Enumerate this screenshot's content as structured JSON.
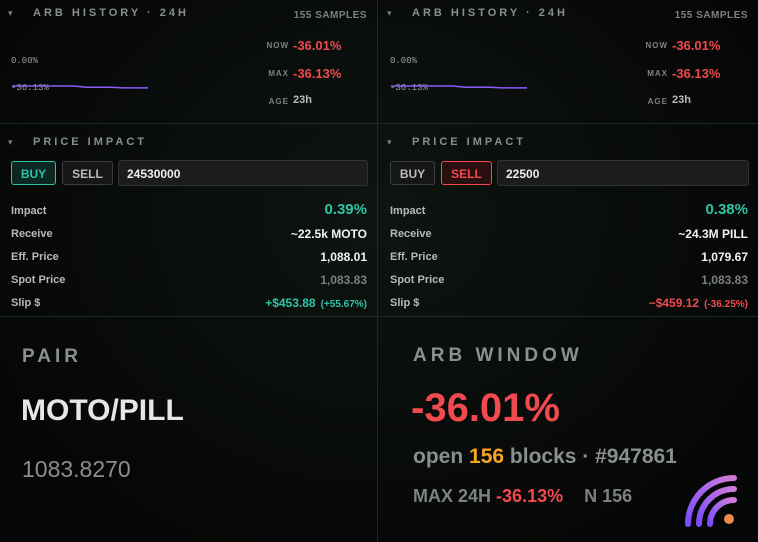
{
  "panels": [
    {
      "history": {
        "title": "ARB HISTORY · 24H",
        "samples": "155 SAMPLES",
        "sparkline": {
          "ticks": [
            {
              "value": 0,
              "label": "0.00%"
            },
            {
              "value": -36.13,
              "label": "-36.13%"
            }
          ],
          "values": [
            -33.6,
            -33.6,
            -33.6,
            -33.6,
            -33.6,
            -33.6,
            -35.2,
            -35.2,
            -35.2,
            -36.01,
            -36.01,
            -36.01
          ]
        },
        "now_label": "NOW",
        "now": "-36.01%",
        "max_label": "MAX",
        "max": "-36.13%",
        "age_label": "AGE",
        "age": "23h"
      },
      "impact": {
        "title": "PRICE IMPACT",
        "buy": "BUY",
        "sell": "SELL",
        "side": "buy",
        "amount": "24530000",
        "rows": [
          {
            "label": "Impact",
            "value": "0.39%"
          },
          {
            "label": "Receive",
            "value": "~22.5k MOTO"
          },
          {
            "label": "Eff. Price",
            "value": "1,088.01"
          },
          {
            "label": "Spot Price",
            "value": "1,083.83"
          },
          {
            "label": "Slip $",
            "value": "+$453.88",
            "note": "(+55.67%)",
            "tone": "up"
          }
        ]
      }
    },
    {
      "history": {
        "title": "ARB HISTORY · 24H",
        "samples": "155 SAMPLES",
        "sparkline": {
          "ticks": [
            {
              "value": 0,
              "label": "0.00%"
            },
            {
              "value": -36.13,
              "label": "-36.13%"
            }
          ],
          "values": [
            -33.6,
            -33.6,
            -33.6,
            -33.6,
            -33.6,
            -33.6,
            -35.2,
            -35.2,
            -35.2,
            -36.01,
            -36.01,
            -36.01
          ]
        },
        "now_label": "NOW",
        "now": "-36.01%",
        "max_label": "MAX",
        "max": "-36.13%",
        "age_label": "AGE",
        "age": "23h"
      },
      "impact": {
        "title": "PRICE IMPACT",
        "buy": "BUY",
        "sell": "SELL",
        "side": "sell",
        "amount": "22500",
        "rows": [
          {
            "label": "Impact",
            "value": "0.38%"
          },
          {
            "label": "Receive",
            "value": "~24.3M PILL"
          },
          {
            "label": "Eff. Price",
            "value": "1,079.67"
          },
          {
            "label": "Spot Price",
            "value": "1,083.83"
          },
          {
            "label": "Slip $",
            "value": "−$459.12",
            "note": "(-36.25%)",
            "tone": "down"
          }
        ]
      }
    }
  ],
  "pair": {
    "label": "PAIR",
    "value": "MOTO/PILL",
    "price": "1083.8270"
  },
  "window": {
    "label": "ARB WINDOW",
    "value": "-36.01%",
    "open": "open",
    "blocks_n": "156",
    "blocks": "blocks · #947861",
    "max_label": "MAX 24H",
    "max": "-36.13%",
    "n": "N 156"
  }
}
